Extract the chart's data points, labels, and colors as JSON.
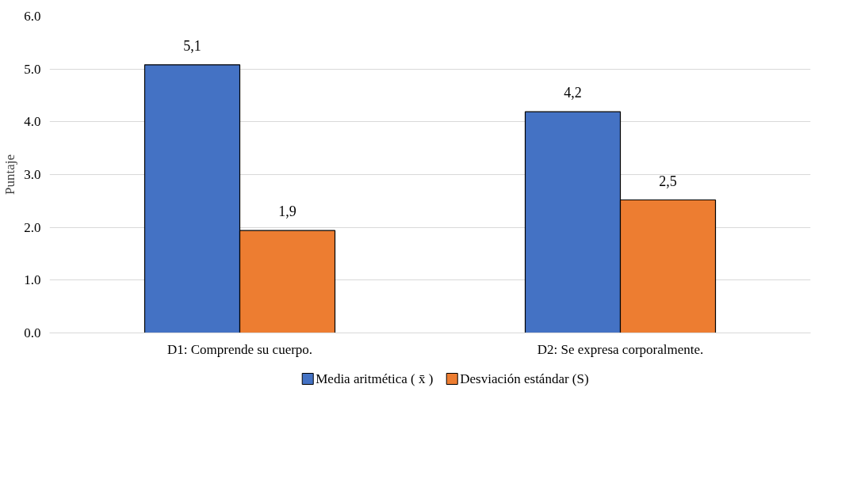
{
  "chart_data": {
    "type": "bar",
    "ylabel": "Puntaje",
    "categories": [
      "D1: Comprende su cuerpo.",
      "D2: Se expresa corporalmente."
    ],
    "series": [
      {
        "name": "Media aritmética ( x̄ )",
        "color": "#4472c4",
        "values": [
          5.08,
          4.19
        ],
        "value_labels": [
          "5,1",
          "4,2"
        ]
      },
      {
        "name": "Desviación estándar (S)",
        "color": "#ed7d31",
        "values": [
          1.94,
          2.52
        ],
        "value_labels": [
          "1,9",
          "2,5"
        ]
      }
    ],
    "ylim": [
      0,
      6
    ],
    "yticks": [
      {
        "value": 0,
        "label": "0.0"
      },
      {
        "value": 1,
        "label": "1.0"
      },
      {
        "value": 2,
        "label": "2.0"
      },
      {
        "value": 3,
        "label": "3.0"
      },
      {
        "value": 4,
        "label": "4.0"
      },
      {
        "value": 5,
        "label": "5.0"
      },
      {
        "value": 6,
        "label": "6.0"
      }
    ],
    "grid": "y",
    "legend": "bottom"
  }
}
